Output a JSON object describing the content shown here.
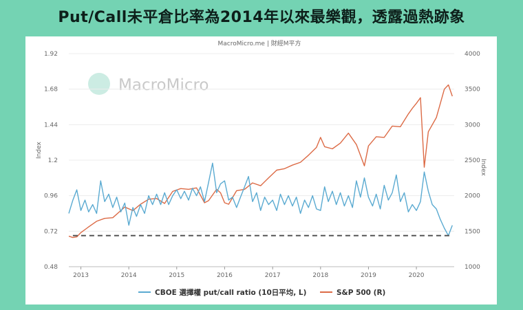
{
  "page_title": "Put/Call未平倉比率為2014年以來最樂觀，透露過熱跡象",
  "chart_data": {
    "type": "line",
    "source": "MacroMicro.me | 財經M平方",
    "watermark": "MacroMicro",
    "y_left": {
      "label": "Index",
      "ticks": [
        "0.48",
        "0.72",
        "0.96",
        "1.2",
        "1.44",
        "1.68",
        "1.92"
      ],
      "range": [
        0.48,
        1.92
      ]
    },
    "y_right": {
      "label": "Index",
      "ticks": [
        "1000",
        "1500",
        "2000",
        "2500",
        "3000",
        "3500",
        "4000"
      ],
      "range": [
        1000,
        4000
      ]
    },
    "x_ticks": [
      "2013",
      "2014",
      "2015",
      "2016",
      "2017",
      "2018",
      "2019",
      "2020"
    ],
    "reference_line": {
      "axis": "left",
      "value": 0.69,
      "style": "dashed"
    },
    "grid": true,
    "legend_position": "bottom",
    "colors": {
      "put_call": "#5aaad1",
      "sp500": "#dc6a45",
      "reference": "#555555"
    },
    "series": [
      {
        "name": "CBOE 選擇權 put/call ratio (10日平均, L)",
        "axis": "left",
        "color": "#5aaad1",
        "points": [
          [
            "2012-10",
            0.84
          ],
          [
            "2012-11",
            0.93
          ],
          [
            "2012-12",
            1.0
          ],
          [
            "2013-01",
            0.86
          ],
          [
            "2013-02",
            0.93
          ],
          [
            "2013-03",
            0.85
          ],
          [
            "2013-04",
            0.9
          ],
          [
            "2013-05",
            0.84
          ],
          [
            "2013-06",
            1.06
          ],
          [
            "2013-07",
            0.92
          ],
          [
            "2013-08",
            0.97
          ],
          [
            "2013-09",
            0.88
          ],
          [
            "2013-10",
            0.95
          ],
          [
            "2013-11",
            0.85
          ],
          [
            "2013-12",
            0.91
          ],
          [
            "2014-01",
            0.76
          ],
          [
            "2014-02",
            0.88
          ],
          [
            "2014-03",
            0.82
          ],
          [
            "2014-04",
            0.9
          ],
          [
            "2014-05",
            0.84
          ],
          [
            "2014-06",
            0.96
          ],
          [
            "2014-07",
            0.9
          ],
          [
            "2014-08",
            0.97
          ],
          [
            "2014-09",
            0.9
          ],
          [
            "2014-10",
            0.98
          ],
          [
            "2014-11",
            0.9
          ],
          [
            "2014-12",
            0.96
          ],
          [
            "2015-01",
            1.0
          ],
          [
            "2015-02",
            0.94
          ],
          [
            "2015-03",
            0.99
          ],
          [
            "2015-04",
            0.93
          ],
          [
            "2015-05",
            1.01
          ],
          [
            "2015-06",
            0.96
          ],
          [
            "2015-07",
            1.02
          ],
          [
            "2015-08",
            0.92
          ],
          [
            "2015-09",
            1.05
          ],
          [
            "2015-10",
            1.18
          ],
          [
            "2015-11",
            0.98
          ],
          [
            "2015-12",
            1.04
          ],
          [
            "2016-01",
            1.06
          ],
          [
            "2016-02",
            0.93
          ],
          [
            "2016-03",
            0.95
          ],
          [
            "2016-04",
            0.88
          ],
          [
            "2016-05",
            0.95
          ],
          [
            "2016-06",
            1.02
          ],
          [
            "2016-07",
            1.09
          ],
          [
            "2016-08",
            0.92
          ],
          [
            "2016-09",
            0.98
          ],
          [
            "2016-10",
            0.86
          ],
          [
            "2016-11",
            0.95
          ],
          [
            "2016-12",
            0.9
          ],
          [
            "2017-01",
            0.93
          ],
          [
            "2017-02",
            0.86
          ],
          [
            "2017-03",
            0.97
          ],
          [
            "2017-04",
            0.9
          ],
          [
            "2017-05",
            0.96
          ],
          [
            "2017-06",
            0.89
          ],
          [
            "2017-07",
            0.95
          ],
          [
            "2017-08",
            0.84
          ],
          [
            "2017-09",
            0.93
          ],
          [
            "2017-10",
            0.88
          ],
          [
            "2017-11",
            0.96
          ],
          [
            "2017-12",
            0.87
          ],
          [
            "2018-01",
            0.86
          ],
          [
            "2018-02",
            1.02
          ],
          [
            "2018-03",
            0.92
          ],
          [
            "2018-04",
            0.99
          ],
          [
            "2018-05",
            0.9
          ],
          [
            "2018-06",
            0.98
          ],
          [
            "2018-07",
            0.89
          ],
          [
            "2018-08",
            0.96
          ],
          [
            "2018-09",
            0.88
          ],
          [
            "2018-10",
            1.06
          ],
          [
            "2018-11",
            0.95
          ],
          [
            "2018-12",
            1.08
          ],
          [
            "2019-01",
            0.95
          ],
          [
            "2019-02",
            0.89
          ],
          [
            "2019-03",
            0.97
          ],
          [
            "2019-04",
            0.87
          ],
          [
            "2019-05",
            1.03
          ],
          [
            "2019-06",
            0.93
          ],
          [
            "2019-07",
            0.98
          ],
          [
            "2019-08",
            1.1
          ],
          [
            "2019-09",
            0.92
          ],
          [
            "2019-10",
            0.98
          ],
          [
            "2019-11",
            0.85
          ],
          [
            "2019-12",
            0.9
          ],
          [
            "2020-01",
            0.86
          ],
          [
            "2020-02",
            0.92
          ],
          [
            "2020-03",
            1.12
          ],
          [
            "2020-04",
            0.99
          ],
          [
            "2020-05",
            0.9
          ],
          [
            "2020-06",
            0.87
          ],
          [
            "2020-07",
            0.8
          ],
          [
            "2020-08",
            0.74
          ],
          [
            "2020-09",
            0.69
          ],
          [
            "2020-10",
            0.76
          ]
        ]
      },
      {
        "name": "S&P 500 (R)",
        "axis": "right",
        "color": "#dc6a45",
        "points": [
          [
            "2012-10",
            1430
          ],
          [
            "2012-11",
            1410
          ],
          [
            "2012-12",
            1420
          ],
          [
            "2013-01",
            1480
          ],
          [
            "2013-03",
            1560
          ],
          [
            "2013-05",
            1640
          ],
          [
            "2013-07",
            1680
          ],
          [
            "2013-09",
            1690
          ],
          [
            "2013-11",
            1790
          ],
          [
            "2013-12",
            1840
          ],
          [
            "2014-02",
            1790
          ],
          [
            "2014-04",
            1880
          ],
          [
            "2014-06",
            1950
          ],
          [
            "2014-08",
            1960
          ],
          [
            "2014-10",
            1890
          ],
          [
            "2014-12",
            2060
          ],
          [
            "2015-02",
            2100
          ],
          [
            "2015-04",
            2090
          ],
          [
            "2015-06",
            2110
          ],
          [
            "2015-08",
            1900
          ],
          [
            "2015-09",
            1930
          ],
          [
            "2015-11",
            2090
          ],
          [
            "2015-12",
            2040
          ],
          [
            "2016-01",
            1900
          ],
          [
            "2016-02",
            1880
          ],
          [
            "2016-04",
            2070
          ],
          [
            "2016-06",
            2090
          ],
          [
            "2016-08",
            2180
          ],
          [
            "2016-10",
            2140
          ],
          [
            "2016-12",
            2250
          ],
          [
            "2017-02",
            2360
          ],
          [
            "2017-04",
            2380
          ],
          [
            "2017-06",
            2430
          ],
          [
            "2017-08",
            2470
          ],
          [
            "2017-10",
            2570
          ],
          [
            "2017-12",
            2680
          ],
          [
            "2018-01",
            2820
          ],
          [
            "2018-02",
            2690
          ],
          [
            "2018-04",
            2660
          ],
          [
            "2018-06",
            2740
          ],
          [
            "2018-08",
            2880
          ],
          [
            "2018-10",
            2720
          ],
          [
            "2018-12",
            2420
          ],
          [
            "2019-01",
            2700
          ],
          [
            "2019-03",
            2830
          ],
          [
            "2019-05",
            2820
          ],
          [
            "2019-07",
            2980
          ],
          [
            "2019-09",
            2970
          ],
          [
            "2019-11",
            3150
          ],
          [
            "2019-12",
            3230
          ],
          [
            "2020-01",
            3300
          ],
          [
            "2020-02",
            3380
          ],
          [
            "2020-03",
            2400
          ],
          [
            "2020-04",
            2900
          ],
          [
            "2020-06",
            3100
          ],
          [
            "2020-08",
            3500
          ],
          [
            "2020-09",
            3560
          ],
          [
            "2020-10",
            3400
          ]
        ]
      }
    ]
  }
}
